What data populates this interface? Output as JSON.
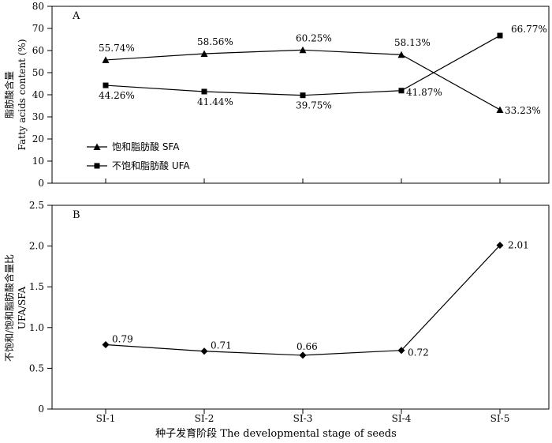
{
  "chart_data": [
    {
      "type": "line",
      "panel_label": "A",
      "categories": [
        "SI-1",
        "SI-2",
        "SI-3",
        "SI-4",
        "SI-5"
      ],
      "series": [
        {
          "name": "饱和脂肪酸  SFA",
          "marker": "triangle",
          "values": [
            55.74,
            58.56,
            60.25,
            58.13,
            33.23
          ],
          "labels": [
            "55.74%",
            "58.56%",
            "60.25%",
            "58.13%",
            "33.23%"
          ]
        },
        {
          "name": "不饱和脂肪酸  UFA",
          "marker": "square",
          "values": [
            44.26,
            41.44,
            39.75,
            41.87,
            66.77
          ],
          "labels": [
            "44.26%",
            "41.44%",
            "39.75%",
            "41.87%",
            "66.77%"
          ]
        }
      ],
      "ylabel_cn": "脂肪酸含量",
      "ylabel_en": "Fatty acids content (%)",
      "ylim": [
        0,
        80
      ],
      "yticks": [
        "0",
        "10",
        "20",
        "30",
        "40",
        "50",
        "60",
        "70",
        "80"
      ],
      "legend_position": "left-middle",
      "grid": false
    },
    {
      "type": "line",
      "panel_label": "B",
      "categories": [
        "SI-1",
        "SI-2",
        "SI-3",
        "SI-4",
        "SI-5"
      ],
      "series": [
        {
          "marker": "diamond",
          "values": [
            0.79,
            0.71,
            0.66,
            0.72,
            2.01
          ],
          "labels": [
            "0.79",
            "0.71",
            "0.66",
            "0.72",
            "2.01"
          ]
        }
      ],
      "ylabel_cn": "不饱和/饱和脂肪酸含量比",
      "ylabel_en": "UFA/SFA",
      "ylim": [
        0,
        2.5
      ],
      "yticks": [
        "0",
        "0.5",
        "1.0",
        "1.5",
        "2.0",
        "2.5"
      ],
      "xlabel": "种子发育阶段 The developmental stage of seeds",
      "grid": false
    }
  ]
}
